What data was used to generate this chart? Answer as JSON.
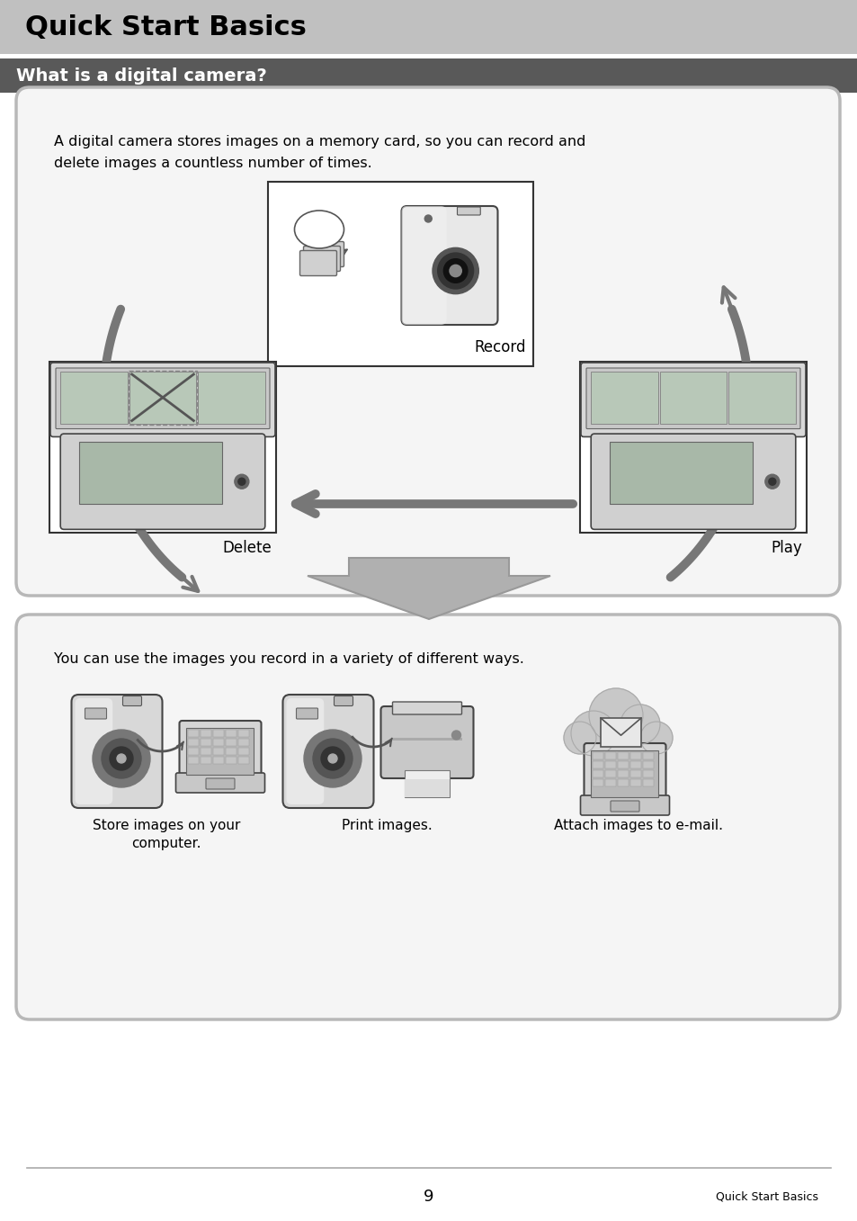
{
  "title": "Quick Start Basics",
  "title_bg": "#c0c0c0",
  "title_color": "#000000",
  "subtitle": "What is a digital camera?",
  "subtitle_bg": "#595959",
  "subtitle_color": "#ffffff",
  "page_bg": "#ffffff",
  "box1_text_line1": "A digital camera stores images on a memory card, so you can record and",
  "box1_text_line2": "delete images a countless number of times.",
  "box1_bg": "#f5f5f5",
  "box1_border": "#b8b8b8",
  "label_record": "Record",
  "label_delete": "Delete",
  "label_play": "Play",
  "box2_text": "You can use the images you record in a variety of different ways.",
  "box2_bg": "#f5f5f5",
  "box2_border": "#b8b8b8",
  "caption1_line1": "Store images on your",
  "caption1_line2": "computer.",
  "caption2": "Print images.",
  "caption3": "Attach images to e-mail.",
  "footer_page": "9",
  "footer_text": "Quick Start Basics",
  "footer_line_color": "#aaaaaa",
  "arrow_color": "#777777",
  "cam_fill": "#e0e0e0",
  "cam_border": "#444444"
}
